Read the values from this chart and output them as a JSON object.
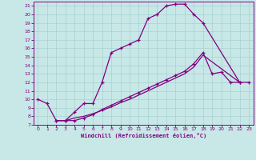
{
  "xlabel": "Windchill (Refroidissement éolien,°C)",
  "bg_color": "#c8e8e8",
  "line_color": "#800080",
  "grid_color": "#a8d0d0",
  "xlim": [
    -0.5,
    23.5
  ],
  "ylim": [
    7,
    21.5
  ],
  "yticks": [
    7,
    8,
    9,
    10,
    11,
    12,
    13,
    14,
    15,
    16,
    17,
    18,
    19,
    20,
    21
  ],
  "xticks": [
    0,
    1,
    2,
    3,
    4,
    5,
    6,
    7,
    8,
    9,
    10,
    11,
    12,
    13,
    14,
    15,
    16,
    17,
    18,
    19,
    20,
    21,
    22,
    23
  ],
  "curve1_x": [
    0,
    1,
    2,
    3,
    4,
    5,
    6,
    7,
    8,
    9,
    10,
    11,
    12,
    13,
    14,
    15,
    16,
    17,
    18,
    22
  ],
  "curve1_y": [
    10,
    9.5,
    7.5,
    7.5,
    8.5,
    9.5,
    9.5,
    12.0,
    15.5,
    16.0,
    16.5,
    17.0,
    19.5,
    20.0,
    21.0,
    21.2,
    21.2,
    20.0,
    19.0,
    12.0
  ],
  "curve2_x": [
    2,
    3,
    4,
    5,
    6,
    7,
    8,
    9,
    10,
    11,
    12,
    13,
    14,
    15,
    16,
    17,
    18,
    19,
    20,
    21,
    22,
    23
  ],
  "curve2_y": [
    7.5,
    7.5,
    7.5,
    7.8,
    8.2,
    8.8,
    9.3,
    9.8,
    10.3,
    10.8,
    11.3,
    11.8,
    12.3,
    12.8,
    13.3,
    14.2,
    15.5,
    13.0,
    13.2,
    12.0,
    12.0,
    12.0
  ],
  "curve3_x": [
    2,
    3,
    4,
    5,
    6,
    7,
    8,
    9,
    10,
    11,
    12,
    13,
    14,
    15,
    16,
    17,
    18,
    22
  ],
  "curve3_y": [
    7.5,
    7.5,
    7.8,
    8.0,
    8.3,
    8.7,
    9.1,
    9.6,
    10.0,
    10.5,
    11.0,
    11.5,
    12.0,
    12.5,
    13.0,
    13.8,
    15.2,
    12.0
  ]
}
